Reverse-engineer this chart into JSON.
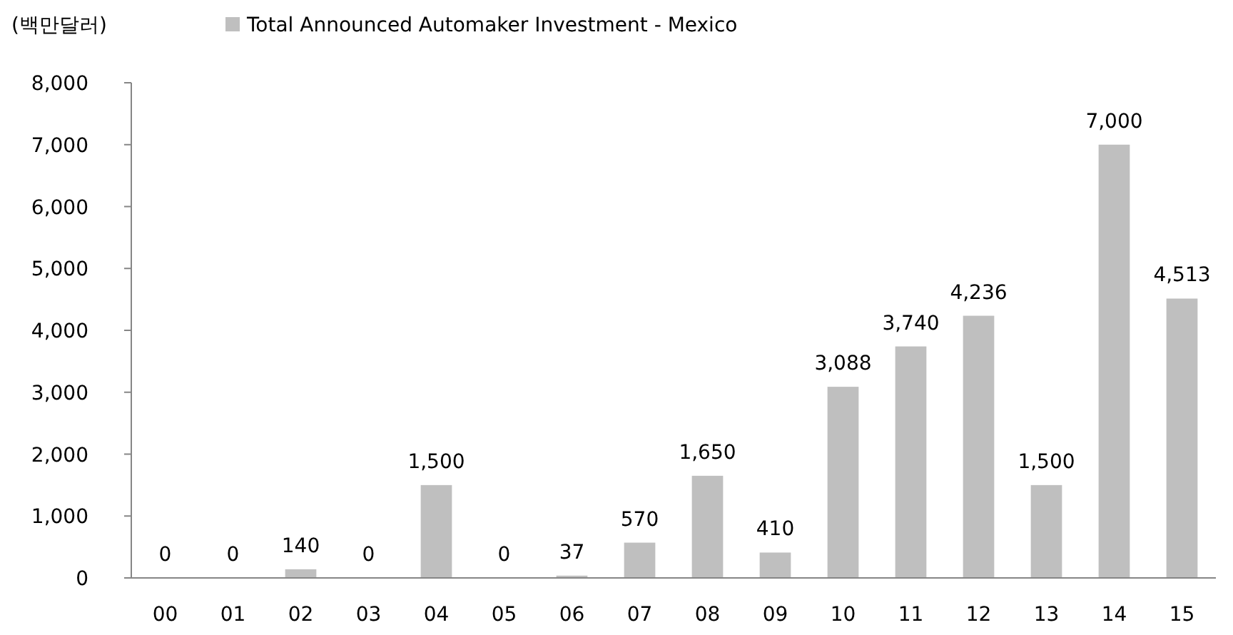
{
  "chart_data": {
    "type": "bar",
    "ylabel": "(백만달러)",
    "categories": [
      "00",
      "01",
      "02",
      "03",
      "04",
      "05",
      "06",
      "07",
      "08",
      "09",
      "10",
      "11",
      "12",
      "13",
      "14",
      "15"
    ],
    "series": [
      {
        "name": "Total Announced Automaker Investment - Mexico",
        "color": "#bfbfbf",
        "values": [
          0,
          0,
          140,
          0,
          1500,
          0,
          37,
          570,
          1650,
          410,
          3088,
          3740,
          4236,
          1500,
          7000,
          4513
        ],
        "value_labels": [
          "0",
          "0",
          "140",
          "0",
          "1,500",
          "0",
          "37",
          "570",
          "1,650",
          "410",
          "3,088",
          "3,740",
          "4,236",
          "1,500",
          "7,000",
          "4,513"
        ]
      }
    ],
    "ylim": [
      0,
      8000
    ],
    "yticks": [
      {
        "value": 0,
        "label": "0"
      },
      {
        "value": 1000,
        "label": "1,000"
      },
      {
        "value": 2000,
        "label": "2,000"
      },
      {
        "value": 3000,
        "label": "3,000"
      },
      {
        "value": 4000,
        "label": "4,000"
      },
      {
        "value": 5000,
        "label": "5,000"
      },
      {
        "value": 6000,
        "label": "6,000"
      },
      {
        "value": 7000,
        "label": "7,000"
      },
      {
        "value": 8000,
        "label": "8,000"
      }
    ],
    "legend": "top",
    "grid": false
  }
}
